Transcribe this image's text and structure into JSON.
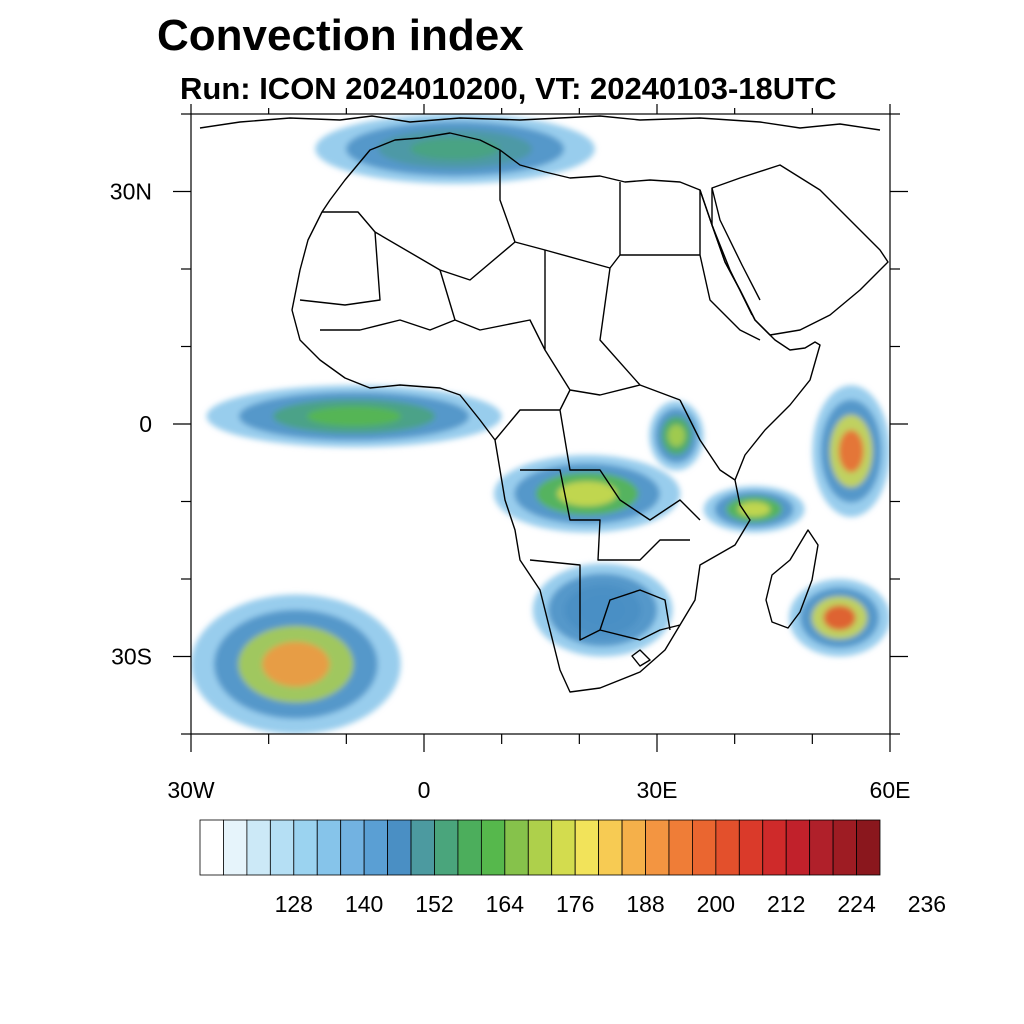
{
  "title": "Convection index",
  "subtitle": "Run: ICON 2024010200,  VT: 20240103-18UTC",
  "map": {
    "projection": "cylindrical equidistant",
    "lon_range": [
      -30,
      60
    ],
    "lat_range": [
      -40,
      40
    ],
    "x_ticks": [
      {
        "lon": -30,
        "label": "30W"
      },
      {
        "lon": 0,
        "label": "0"
      },
      {
        "lon": 30,
        "label": "30E"
      },
      {
        "lon": 60,
        "label": "60E"
      }
    ],
    "y_ticks": [
      {
        "lat": 30,
        "label": "30N"
      },
      {
        "lat": 0,
        "label": "0"
      },
      {
        "lat": -30,
        "label": "30S"
      }
    ],
    "fields": [
      {
        "region": "equatorial Atlantic band",
        "lon": [
          -28,
          10
        ],
        "lat": [
          -3,
          5
        ],
        "level": 160
      },
      {
        "region": "Congo / Angola / Zambia",
        "lon": [
          9,
          33
        ],
        "lat": [
          -14,
          -4
        ],
        "level": 172
      },
      {
        "region": "Lake Victoria area",
        "lon": [
          29,
          36
        ],
        "lat": [
          -6,
          3
        ],
        "level": 166
      },
      {
        "region": "Tanzania / Mozambique channel north",
        "lon": [
          36,
          49
        ],
        "lat": [
          -14,
          -8
        ],
        "level": 172
      },
      {
        "region": "SW Indian Ocean (east of Madagascar)",
        "lon": [
          47,
          60
        ],
        "lat": [
          -30,
          -20
        ],
        "level": 200
      },
      {
        "region": "NW Indian Ocean",
        "lon": [
          50,
          60
        ],
        "lat": [
          -12,
          5
        ],
        "level": 196
      },
      {
        "region": "South Atlantic frontal band",
        "lon": [
          -30,
          -3
        ],
        "lat": [
          -40,
          -22
        ],
        "level": 188
      },
      {
        "region": "Mediterranean / Morocco",
        "lon": [
          -14,
          22
        ],
        "lat": [
          31,
          40
        ],
        "level": 152
      },
      {
        "region": "Southern Africa interior",
        "lon": [
          14,
          32
        ],
        "lat": [
          -30,
          -18
        ],
        "level": 144
      }
    ]
  },
  "colorbar": {
    "labels": [
      "128",
      "140",
      "152",
      "164",
      "176",
      "188",
      "200",
      "212",
      "224",
      "236"
    ],
    "colors": [
      "#ffffff",
      "#e6f4fb",
      "#cce9f7",
      "#b5dff4",
      "#9bd3f0",
      "#86c4ea",
      "#72b2e1",
      "#5a9fd4",
      "#4a8fc4",
      "#4c9aa0",
      "#4aa57c",
      "#4cae5c",
      "#56b84c",
      "#86c24b",
      "#aed04b",
      "#d3dc4e",
      "#f2e35a",
      "#f7cb53",
      "#f5b04a",
      "#f39541",
      "#ef7d37",
      "#ea6630",
      "#e3502c",
      "#da3a2a",
      "#cf2a2a",
      "#c1212b",
      "#b0202a",
      "#9e1c23",
      "#8a171d"
    ]
  }
}
